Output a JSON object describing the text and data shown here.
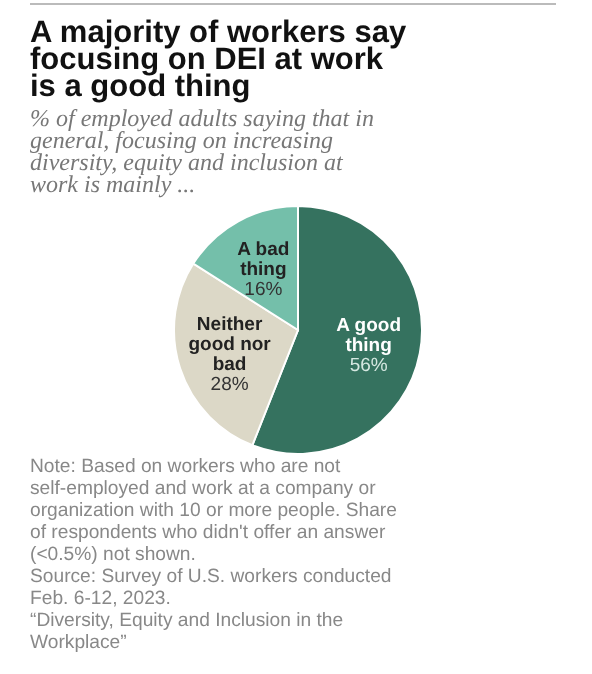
{
  "chart_data": {
    "type": "pie",
    "title": "A majority of workers say focusing on DEI at work is a good thing",
    "subtitle": "% of employed adults saying that in general, focusing on increasing diversity, equity and inclusion at work is mainly ...",
    "categories": [
      "A good thing",
      "Neither good nor bad",
      "A bad thing"
    ],
    "values": [
      56,
      28,
      16
    ],
    "colors": [
      "#35725f",
      "#dcd8c7",
      "#74bfaa"
    ],
    "value_labels": [
      "56%",
      "28%",
      "16%"
    ],
    "annotations": [
      "Note: Based on workers who are not self-employed and work at a company or organization with 10 or more people. Share of respondents who didn't offer an answer (<0.5%) not shown.",
      "Source: Survey of U.S. workers conducted Feb. 6-12, 2023.",
      "“Diversity, Equity and Inclusion in the Workplace”"
    ]
  }
}
